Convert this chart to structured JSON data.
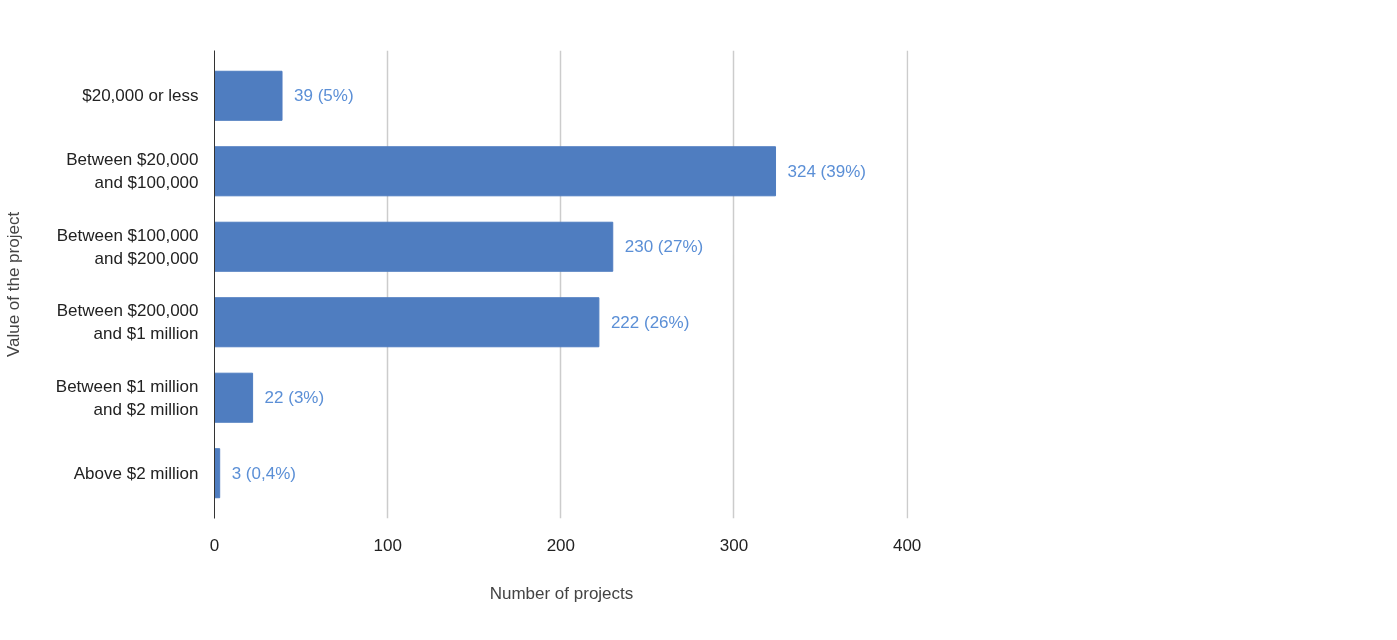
{
  "chart_data": {
    "type": "bar",
    "orientation": "horizontal",
    "xlabel": "Number of projects",
    "ylabel": "Value of the project",
    "categories": [
      "$20,000 or less",
      "Between $20,000\nand $100,000",
      "Between $100,000\nand $200,000",
      "Between $200,000\nand $1 million",
      "Between $1 million\nand $2 million",
      "Above $2 million"
    ],
    "values": [
      39,
      324,
      230,
      222,
      22,
      3
    ],
    "value_labels": [
      "39 (5%)",
      "324 (39%)",
      "230 (27%)",
      "222 (26%)",
      "22 (3%)",
      "3 (0,4%)"
    ],
    "color": "#4f7dc0",
    "xlim": [
      0,
      400
    ],
    "xticks": [
      0,
      100,
      200,
      300,
      400
    ],
    "grid": "x"
  }
}
